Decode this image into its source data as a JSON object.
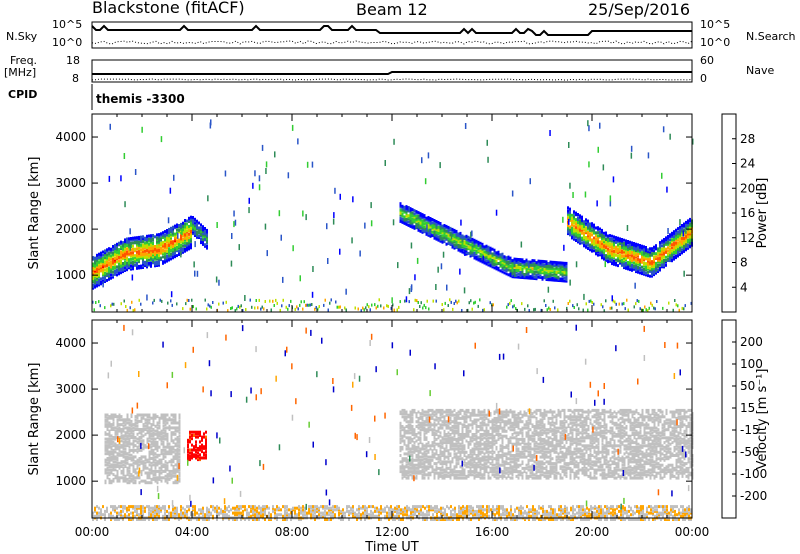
{
  "header": {
    "station": "Blackstone (fitACF)",
    "beam": "Beam 12",
    "date": "25/Sep/2016"
  },
  "noise_panel": {
    "left_label": "N.Sky",
    "right_label": "N.Search",
    "left_ticks": [
      "10^5",
      "10^0"
    ],
    "right_ticks": [
      "10^5",
      "10^0"
    ]
  },
  "freq_panel": {
    "left_label": "Freq.",
    "left_unit": "[MHz]",
    "right_label": "Nave",
    "left_ticks": [
      "18",
      "8"
    ],
    "right_ticks": [
      "60",
      "0"
    ]
  },
  "cpid_panel": {
    "label": "CPID",
    "value": "themis -3300"
  },
  "colors": {
    "power": [
      "#0000ff",
      "#2a55c8",
      "#2e8b57",
      "#32cd32",
      "#bfe000",
      "#ffa500",
      "#ff5500",
      "#ff0000"
    ],
    "velocity": [
      "#ff0000",
      "#ff6600",
      "#ffa500",
      "#c0c0c0",
      "#c0c0c0",
      "#66cc33",
      "#2e8b57",
      "#0000cc"
    ]
  },
  "chart_data": [
    {
      "type": "heatmap",
      "quantity": "power",
      "ylabel": "Slant Range [km]",
      "yticks": [
        "4000",
        "3000",
        "2000",
        "1000"
      ],
      "ylim": [
        200,
        4500
      ],
      "xlim": [
        0,
        24
      ],
      "colorbar": {
        "label": "Power [dB]",
        "ticks": [
          "28",
          "24",
          "20",
          "16",
          "12",
          "8",
          "4"
        ],
        "range": [
          0,
          32
        ]
      },
      "bands": [
        {
          "x": [
            0.0,
            4.0
          ],
          "center": [
            1100,
            1500,
            1600,
            2000
          ],
          "width": 700,
          "peak_dB": 26
        },
        {
          "x": [
            4.0,
            4.6
          ],
          "center": [
            2100,
            1800
          ],
          "width": 400,
          "peak_dB": 12
        },
        {
          "x": [
            12.3,
            19.0
          ],
          "center": [
            2400,
            1800,
            1200,
            1100
          ],
          "width": 400,
          "peak_dB": 18
        },
        {
          "x": [
            19.0,
            24.0
          ],
          "center": [
            2200,
            1600,
            1300,
            2000
          ],
          "width": 600,
          "peak_dB": 26
        }
      ]
    },
    {
      "type": "heatmap",
      "quantity": "velocity",
      "ylabel": "Slant Range [km]",
      "yticks": [
        "4000",
        "3000",
        "2000",
        "1000"
      ],
      "ylim": [
        200,
        4500
      ],
      "xlim": [
        0,
        24
      ],
      "xlabel": "Time UT",
      "xticks": [
        "00:00",
        "04:00",
        "08:00",
        "12:00",
        "16:00",
        "20:00",
        "00:00"
      ],
      "colorbar": {
        "label": "Velocity [m s⁻¹]",
        "ticks": [
          "200",
          "100",
          "50",
          "15",
          "-15",
          "-50",
          "-100",
          "-200"
        ],
        "range": [
          -250,
          250
        ]
      },
      "features": [
        {
          "x": [
            0.5,
            3.5
          ],
          "range": [
            1000,
            2500
          ],
          "velocity": 0
        },
        {
          "x": [
            3.8,
            4.6
          ],
          "range": [
            1500,
            2100
          ],
          "velocity": -220
        },
        {
          "x": [
            12.3,
            24.0
          ],
          "range": [
            1100,
            2600
          ],
          "velocity": 0
        },
        {
          "x": [
            0.0,
            24.0
          ],
          "range": [
            200,
            500
          ],
          "velocity": -40
        }
      ]
    }
  ]
}
